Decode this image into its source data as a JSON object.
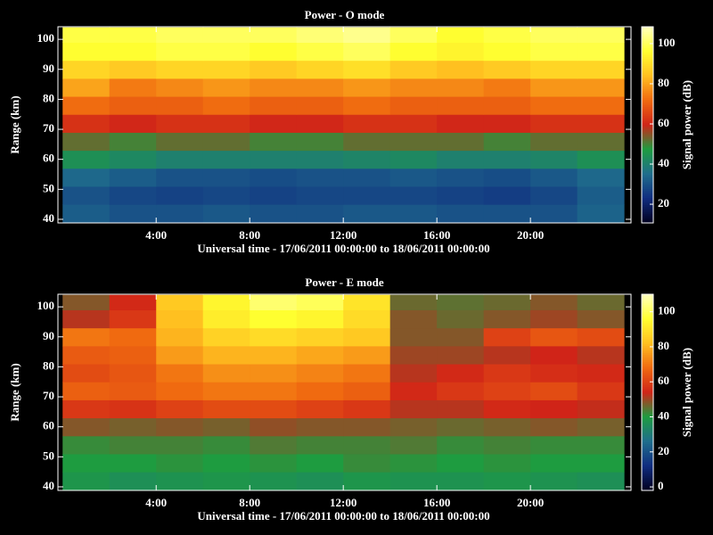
{
  "chart_data": [
    {
      "type": "heatmap",
      "title": "Power - O mode",
      "xlabel": "Universal time - 17/06/2011 00:00:00 to 18/06/2011 00:00:00",
      "ylabel": "Range (km)",
      "colorbar_label": "Signal power (dB)",
      "x_bins": [
        0,
        2,
        4,
        6,
        8,
        10,
        12,
        14,
        16,
        18,
        20,
        22,
        24
      ],
      "y_bins": [
        39,
        45,
        51,
        57,
        63,
        69,
        75,
        81,
        87,
        93,
        99,
        104
      ],
      "z": [
        [
          32,
          30,
          30,
          31,
          30,
          30,
          31,
          31,
          30,
          30,
          30,
          33
        ],
        [
          30,
          28,
          27,
          28,
          27,
          28,
          28,
          28,
          27,
          26,
          28,
          32
        ],
        [
          34,
          32,
          30,
          30,
          29,
          30,
          30,
          31,
          30,
          29,
          31,
          34
        ],
        [
          44,
          42,
          40,
          40,
          40,
          40,
          41,
          42,
          40,
          40,
          41,
          44
        ],
        [
          52,
          50,
          52,
          52,
          50,
          50,
          52,
          52,
          52,
          50,
          52,
          52
        ],
        [
          62,
          60,
          62,
          62,
          60,
          60,
          62,
          62,
          60,
          60,
          62,
          62
        ],
        [
          72,
          70,
          70,
          72,
          70,
          70,
          72,
          70,
          70,
          70,
          72,
          72
        ],
        [
          80,
          74,
          76,
          78,
          76,
          76,
          78,
          76,
          76,
          74,
          78,
          78
        ],
        [
          88,
          86,
          88,
          88,
          86,
          88,
          90,
          86,
          84,
          86,
          88,
          88
        ],
        [
          96,
          96,
          98,
          98,
          96,
          98,
          100,
          96,
          94,
          96,
          98,
          98
        ],
        [
          98,
          98,
          100,
          100,
          100,
          102,
          104,
          100,
          96,
          98,
          100,
          100
        ]
      ],
      "xlim": [
        -0.2,
        24.3
      ],
      "ylim": [
        38.8,
        104.2
      ],
      "zlim": [
        10.7,
        108.4
      ],
      "xticks": [
        {
          "value": 4,
          "label": "4:00"
        },
        {
          "value": 8,
          "label": "8:00"
        },
        {
          "value": 12,
          "label": "12:00"
        },
        {
          "value": 16,
          "label": "16:00"
        },
        {
          "value": 20,
          "label": "20:00"
        }
      ],
      "yticks": [
        40,
        50,
        60,
        70,
        80,
        90,
        100
      ],
      "zticks": [
        20,
        40,
        60,
        80,
        100
      ],
      "colorscale": [
        "#000020",
        "#102c80",
        "#1f6e8c",
        "#1e9c40",
        "#d02418",
        "#f06a10",
        "#ffc020",
        "#ffff30",
        "#ffffc0"
      ]
    },
    {
      "type": "heatmap",
      "title": "Power - E mode",
      "xlabel": "Universal time - 17/06/2011 00:00:00 to 18/06/2011 00:00:00",
      "ylabel": "Range (km)",
      "colorbar_label": "Signal power (dB)",
      "x_bins": [
        0,
        2,
        4,
        6,
        8,
        10,
        12,
        14,
        16,
        18,
        20,
        22,
        24
      ],
      "y_bins": [
        39,
        45,
        51,
        57,
        63,
        69,
        75,
        81,
        87,
        93,
        99,
        104
      ],
      "z": [
        [
          38,
          36,
          37,
          38,
          37,
          36,
          38,
          37,
          37,
          38,
          37,
          36
        ],
        [
          40,
          40,
          41,
          40,
          41,
          40,
          42,
          41,
          40,
          41,
          40,
          40
        ],
        [
          42,
          43,
          43,
          42,
          44,
          43,
          43,
          44,
          42,
          43,
          42,
          42
        ],
        [
          48,
          47,
          48,
          47,
          49,
          48,
          48,
          47,
          46,
          47,
          48,
          47
        ],
        [
          58,
          57,
          60,
          62,
          62,
          60,
          58,
          52,
          52,
          55,
          54,
          53
        ],
        [
          66,
          65,
          68,
          70,
          70,
          68,
          66,
          55,
          58,
          60,
          62,
          58
        ],
        [
          62,
          64,
          70,
          74,
          74,
          72,
          70,
          52,
          55,
          58,
          56,
          55
        ],
        [
          65,
          66,
          76,
          80,
          80,
          78,
          76,
          50,
          50,
          52,
          54,
          52
        ],
        [
          70,
          68,
          80,
          86,
          88,
          86,
          84,
          48,
          48,
          60,
          64,
          62
        ],
        [
          52,
          58,
          82,
          92,
          96,
          94,
          88,
          48,
          46,
          48,
          50,
          48
        ],
        [
          48,
          55,
          84,
          94,
          102,
          100,
          90,
          46,
          45,
          46,
          48,
          46
        ]
      ],
      "xlim": [
        -0.2,
        24.3
      ],
      "ylim": [
        38.8,
        104.2
      ],
      "zlim": [
        -2,
        110
      ],
      "xticks": [
        {
          "value": 4,
          "label": "4:00"
        },
        {
          "value": 8,
          "label": "8:00"
        },
        {
          "value": 12,
          "label": "12:00"
        },
        {
          "value": 16,
          "label": "16:00"
        },
        {
          "value": 20,
          "label": "20:00"
        }
      ],
      "yticks": [
        40,
        50,
        60,
        70,
        80,
        90,
        100
      ],
      "zticks": [
        0,
        20,
        40,
        60,
        80,
        100
      ],
      "colorscale": [
        "#000020",
        "#102c80",
        "#1f6e8c",
        "#1e9c40",
        "#d02418",
        "#f06a10",
        "#ffc020",
        "#ffff30",
        "#ffffc0"
      ]
    }
  ]
}
